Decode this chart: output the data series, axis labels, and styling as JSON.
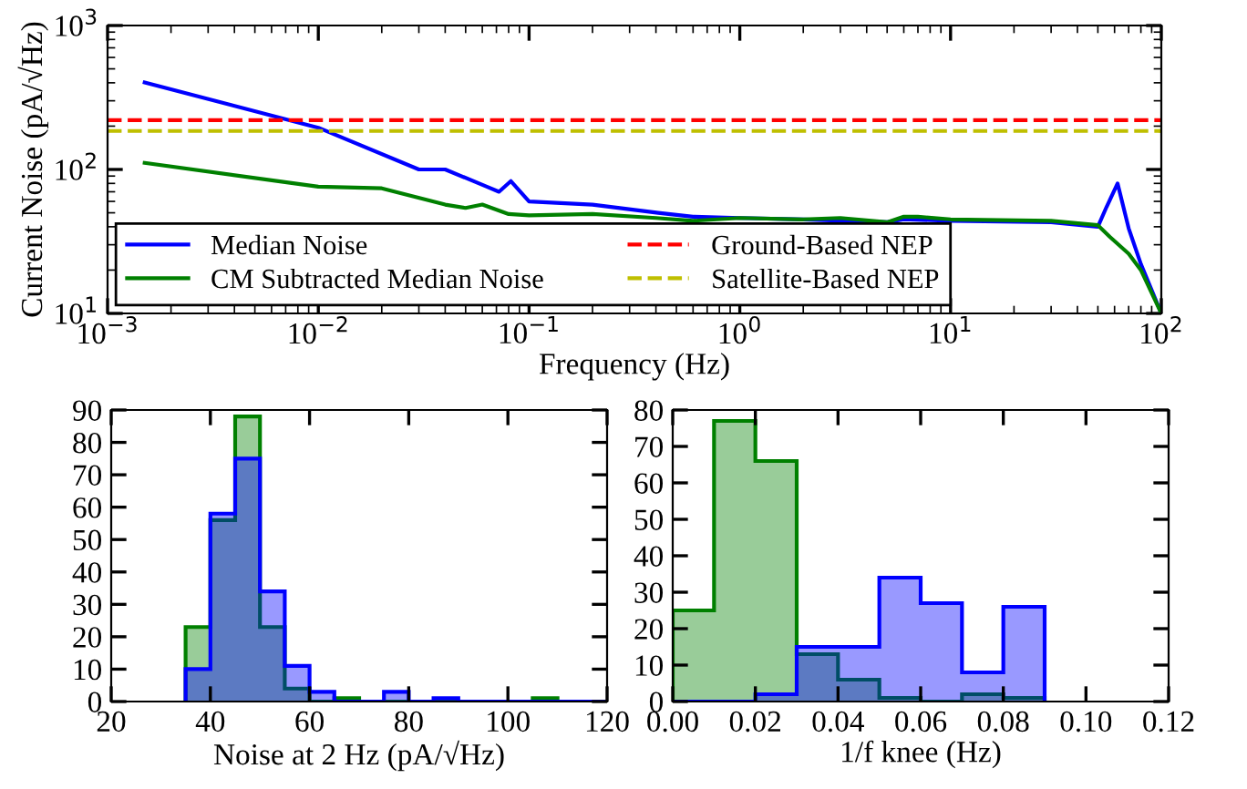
{
  "chart_data": [
    {
      "type": "line",
      "xlabel": "Frequency (Hz)",
      "ylabel": "Current Noise (pA/√Hz)",
      "log": "xy",
      "xlim": [
        0.001,
        100
      ],
      "ylim": [
        10,
        1000
      ],
      "xticks": [
        {
          "value": 0.001,
          "label": "10$^{−3}$"
        },
        {
          "value": 0.01,
          "label": "10$^{−2}$"
        },
        {
          "value": 0.1,
          "label": "10$^{−1}$"
        },
        {
          "value": 1,
          "label": "10$^{0}$"
        },
        {
          "value": 10,
          "label": "10$^{1}$"
        },
        {
          "value": 100,
          "label": "10$^{2}$"
        }
      ],
      "yticks": [
        {
          "value": 10,
          "label": "10$^{1}$"
        },
        {
          "value": 100,
          "label": "10$^{2}$"
        },
        {
          "value": 1000,
          "label": "10$^{3}$"
        }
      ],
      "grid": false,
      "legend": "bottom left",
      "line_style": "solid",
      "series": [
        {
          "name": "Median Noise",
          "color": "#0000ff",
          "x": [
            0.0015,
            0.01,
            0.03,
            0.04,
            0.063,
            0.072,
            0.082,
            0.1,
            0.2,
            0.41,
            0.6,
            1,
            2,
            5,
            6,
            10,
            30,
            50,
            55,
            62,
            70,
            80,
            100
          ],
          "values": [
            402,
            195,
            100,
            100,
            76,
            70,
            83,
            60,
            57,
            50,
            47,
            46,
            45,
            43,
            45,
            44,
            43,
            40,
            55,
            80,
            39,
            22,
            10
          ]
        },
        {
          "name": "CM Subtracted Median Noise",
          "color": "#008000",
          "x": [
            0.0015,
            0.01,
            0.02,
            0.04,
            0.05,
            0.06,
            0.08,
            0.1,
            0.2,
            0.4,
            0.6,
            1,
            2,
            3,
            5,
            6,
            7,
            10,
            30,
            50,
            57,
            70,
            80,
            100
          ],
          "values": [
            111,
            76,
            74,
            57,
            54,
            57,
            49,
            48,
            49,
            46,
            44,
            46,
            45,
            46,
            43,
            47,
            47,
            45,
            44,
            41,
            34,
            26,
            20,
            10
          ]
        }
      ],
      "ref_lines": [
        {
          "axis": "y",
          "value": 220,
          "label": "Ground-Based NEP",
          "color": "#ff0000",
          "line_style": "dashed"
        },
        {
          "axis": "y",
          "value": 185,
          "label": "Satellite-Based NEP",
          "color": "#bfbf00",
          "line_style": "dashed"
        }
      ]
    },
    {
      "type": "histogram",
      "xlabel": "Noise at 2 Hz (pA/√Hz)",
      "xlim": [
        20,
        120
      ],
      "ylim": [
        0,
        90
      ],
      "xticks": [
        20,
        40,
        60,
        80,
        100,
        120
      ],
      "yticks": [
        0,
        10,
        20,
        30,
        40,
        50,
        60,
        70,
        80,
        90
      ],
      "grid": false,
      "bins": [
        35,
        40,
        45,
        50,
        55,
        60,
        65,
        70,
        75,
        80,
        85,
        90,
        95,
        100,
        105,
        110,
        115,
        120
      ],
      "series": [
        {
          "color": "#008000",
          "values": [
            23,
            56,
            88,
            23,
            4,
            0,
            1,
            0,
            0,
            0,
            0,
            0,
            0,
            0,
            1,
            0,
            0
          ]
        },
        {
          "color": "#0000ff",
          "values": [
            10,
            58,
            75,
            34,
            11,
            3,
            0,
            0,
            3,
            0,
            1,
            0,
            0,
            0,
            0,
            0,
            0
          ]
        }
      ]
    },
    {
      "type": "histogram",
      "xlabel": "1/f knee (Hz)",
      "xlim": [
        0,
        0.12
      ],
      "ylim": [
        0,
        80
      ],
      "xticks": [
        {
          "value": 0,
          "label": "0.00"
        },
        {
          "value": 0.02,
          "label": "0.02"
        },
        {
          "value": 0.04,
          "label": "0.04"
        },
        {
          "value": 0.06,
          "label": "0.06"
        },
        {
          "value": 0.08,
          "label": "0.08"
        },
        {
          "value": 0.1,
          "label": "0.10"
        },
        {
          "value": 0.12,
          "label": "0.12"
        }
      ],
      "yticks": [
        0,
        10,
        20,
        30,
        40,
        50,
        60,
        70,
        80
      ],
      "grid": false,
      "bins": [
        0,
        0.01,
        0.02,
        0.03,
        0.04,
        0.05,
        0.06,
        0.07,
        0.08,
        0.09
      ],
      "series": [
        {
          "color": "#008000",
          "values": [
            25,
            77,
            66,
            13,
            6,
            1,
            0,
            2,
            1
          ]
        },
        {
          "color": "#0000ff",
          "values": [
            0,
            0,
            2,
            15,
            15,
            34,
            27,
            8,
            26
          ]
        }
      ]
    }
  ]
}
